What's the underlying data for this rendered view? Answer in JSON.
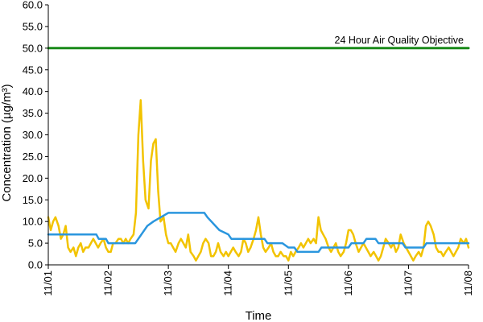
{
  "chart_data": {
    "type": "line",
    "title": "",
    "xlabel": "Time",
    "ylabel": "Concentration (µg/m³)",
    "ylim": [
      0,
      60
    ],
    "y_ticks": [
      "0.0",
      "5.0",
      "10.0",
      "15.0",
      "20.0",
      "25.0",
      "30.0",
      "35.0",
      "40.0",
      "45.0",
      "50.0",
      "55.0",
      "60.0"
    ],
    "xlim": [
      0,
      7
    ],
    "x_ticks": [
      "11/01",
      "11/02",
      "11/03",
      "11/04",
      "11/05",
      "11/06",
      "11/07",
      "11/08"
    ],
    "grid": false,
    "annotations": [
      {
        "text": "24 Hour Air Quality Objective",
        "y": 50
      }
    ],
    "series": [
      {
        "name": "",
        "color": "#f2c300",
        "x": [
          0.0,
          0.04,
          0.08,
          0.12,
          0.17,
          0.21,
          0.25,
          0.29,
          0.33,
          0.37,
          0.42,
          0.46,
          0.5,
          0.54,
          0.58,
          0.62,
          0.67,
          0.71,
          0.75,
          0.79,
          0.83,
          0.87,
          0.92,
          0.96,
          1.0,
          1.04,
          1.08,
          1.12,
          1.17,
          1.21,
          1.25,
          1.29,
          1.33,
          1.37,
          1.42,
          1.46,
          1.5,
          1.54,
          1.58,
          1.62,
          1.67,
          1.71,
          1.75,
          1.79,
          1.83,
          1.87,
          1.92,
          1.96,
          2.0,
          2.04,
          2.08,
          2.12,
          2.17,
          2.21,
          2.25,
          2.29,
          2.33,
          2.37,
          2.42,
          2.46,
          2.5,
          2.54,
          2.58,
          2.62,
          2.67,
          2.71,
          2.75,
          2.79,
          2.83,
          2.87,
          2.92,
          2.96,
          3.0,
          3.04,
          3.08,
          3.12,
          3.17,
          3.21,
          3.25,
          3.29,
          3.33,
          3.37,
          3.42,
          3.46,
          3.5,
          3.54,
          3.58,
          3.62,
          3.67,
          3.71,
          3.75,
          3.79,
          3.83,
          3.87,
          3.92,
          3.96,
          4.0,
          4.04,
          4.08,
          4.12,
          4.17,
          4.21,
          4.25,
          4.29,
          4.33,
          4.37,
          4.42,
          4.46,
          4.5,
          4.54,
          4.58,
          4.62,
          4.67,
          4.71,
          4.75,
          4.79,
          4.83,
          4.87,
          4.92,
          4.96,
          5.0,
          5.04,
          5.08,
          5.12,
          5.17,
          5.21,
          5.25,
          5.29,
          5.33,
          5.37,
          5.42,
          5.46,
          5.5,
          5.54,
          5.58,
          5.62,
          5.67,
          5.71,
          5.75,
          5.79,
          5.83,
          5.87,
          5.92,
          5.96,
          6.0,
          6.04,
          6.08,
          6.12,
          6.17,
          6.21,
          6.25,
          6.29,
          6.33,
          6.37,
          6.42,
          6.46,
          6.5,
          6.54,
          6.58,
          6.62,
          6.67,
          6.71,
          6.75,
          6.79,
          6.83,
          6.87,
          6.92,
          6.96,
          7.0
        ],
        "values": [
          11,
          8,
          10,
          11,
          9,
          6,
          7,
          9,
          4,
          3,
          4,
          2,
          4,
          5,
          3,
          4,
          4,
          5,
          6,
          5,
          4,
          5,
          6,
          4,
          3,
          3,
          5,
          5,
          6,
          6,
          5,
          6,
          5,
          6,
          7,
          12,
          30,
          38,
          24,
          15,
          13,
          24,
          28,
          29,
          17,
          10,
          11,
          7,
          5,
          5,
          4,
          3,
          5,
          6,
          5,
          4,
          7,
          3,
          2,
          1,
          2,
          3,
          5,
          6,
          5,
          2,
          2,
          3,
          5,
          3,
          2,
          3,
          2,
          3,
          4,
          3,
          2,
          3,
          6,
          5,
          3,
          4,
          6,
          8,
          11,
          7,
          4,
          3,
          4,
          5,
          3,
          2,
          2,
          3,
          2,
          2,
          1,
          3,
          2,
          3,
          4,
          5,
          4,
          5,
          6,
          5,
          6,
          5,
          11,
          8,
          7,
          6,
          4,
          3,
          4,
          5,
          3,
          2,
          3,
          5,
          8,
          8,
          7,
          5,
          3,
          4,
          5,
          4,
          3,
          2,
          3,
          2,
          1,
          2,
          4,
          6,
          5,
          4,
          5,
          3,
          4,
          7,
          5,
          4,
          3,
          2,
          1,
          2,
          3,
          2,
          4,
          9,
          10,
          9,
          7,
          4,
          3,
          3,
          2,
          3,
          4,
          3,
          2,
          3,
          4,
          6,
          5,
          6,
          4
        ]
      },
      {
        "name": "",
        "color": "#2a96de",
        "x": [
          0.0,
          0.8,
          0.84,
          0.96,
          1.0,
          1.45,
          1.6,
          1.65,
          1.75,
          2.0,
          2.6,
          2.65,
          2.85,
          3.0,
          3.05,
          3.6,
          3.65,
          3.9,
          4.0,
          4.1,
          4.15,
          4.5,
          4.55,
          5.0,
          5.05,
          5.25,
          5.3,
          5.45,
          5.5,
          5.9,
          5.95,
          6.25,
          6.3,
          6.7,
          6.75,
          7.0
        ],
        "values": [
          7,
          7,
          6,
          6,
          5,
          5,
          8,
          9,
          10,
          12,
          12,
          11,
          8,
          7,
          6,
          6,
          5,
          5,
          4,
          4,
          3,
          3,
          4,
          4,
          5,
          5,
          6,
          6,
          5,
          5,
          4,
          4,
          5,
          5,
          5,
          5
        ]
      },
      {
        "name": "",
        "color": "#1a8a1a",
        "x": [
          0,
          7
        ],
        "values": [
          50,
          50
        ]
      }
    ]
  }
}
